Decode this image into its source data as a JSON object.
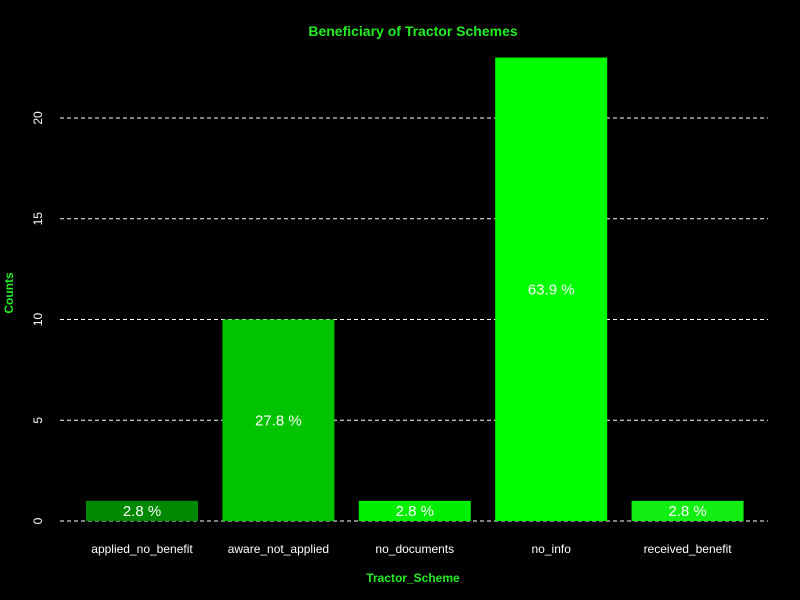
{
  "chart_data": {
    "type": "bar",
    "title": "Beneficiary of Tractor Schemes",
    "xlabel": "Tractor_Scheme",
    "ylabel": "Counts",
    "categories": [
      "applied_no_benefit",
      "aware_not_applied",
      "no_documents",
      "no_info",
      "received_benefit"
    ],
    "values": [
      1,
      10,
      1,
      23,
      1
    ],
    "labels": [
      "2.8 %",
      "27.8 %",
      "2.8 %",
      "63.9 %",
      "2.8 %"
    ],
    "ylim": [
      0,
      23
    ],
    "yticks": [
      0,
      5,
      10,
      15,
      20
    ],
    "grid": "horizontal dashed",
    "colors": {
      "background": "#000000",
      "title": "#22ee22",
      "axis_title": "#22ee22",
      "grid": "#ffffff",
      "bars": [
        "#008800",
        "#00c400",
        "#00ee00",
        "#00ff00",
        "#11ee11"
      ]
    }
  }
}
